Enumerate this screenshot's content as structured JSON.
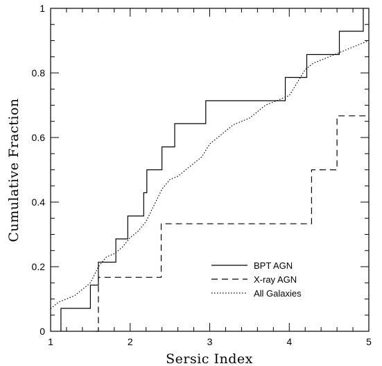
{
  "chart_data": {
    "type": "line",
    "xlabel": "Sersic Index",
    "ylabel": "Cumulative Fraction",
    "xlim": [
      1,
      5
    ],
    "ylim": [
      0,
      1
    ],
    "x_ticks": [
      "1",
      "2",
      "3",
      "4",
      "5"
    ],
    "y_ticks": [
      "0",
      "0.2",
      "0.4",
      "0.6",
      "0.8",
      "1"
    ],
    "grid": false,
    "legend_position": "lower-right",
    "series": [
      {
        "name": "BPT AGN",
        "style": "solid",
        "step": true,
        "x": [
          1.13,
          1.13,
          1.5,
          1.5,
          1.6,
          1.6,
          1.82,
          1.82,
          1.97,
          1.97,
          2.17,
          2.17,
          2.21,
          2.21,
          2.4,
          2.4,
          2.56,
          2.56,
          2.95,
          2.95,
          2.97,
          2.97,
          3.95,
          3.95,
          4.22,
          4.22,
          4.63,
          4.63,
          4.93,
          4.93
        ],
        "y": [
          0,
          0.071,
          0.071,
          0.143,
          0.143,
          0.214,
          0.214,
          0.286,
          0.286,
          0.357,
          0.357,
          0.429,
          0.429,
          0.5,
          0.5,
          0.571,
          0.571,
          0.643,
          0.643,
          0.714,
          0.714,
          0.714,
          0.714,
          0.786,
          0.786,
          0.857,
          0.857,
          0.929,
          0.929,
          1.0
        ]
      },
      {
        "name": "X-ray AGN",
        "style": "dashed",
        "step": true,
        "x": [
          1.57,
          1.57,
          1.6,
          1.6,
          2.39,
          2.39,
          4.28,
          4.28,
          4.6,
          4.6,
          5.0
        ],
        "y": [
          0,
          0.0,
          0.0,
          0.167,
          0.167,
          0.333,
          0.333,
          0.5,
          0.5,
          0.667,
          0.667
        ]
      },
      {
        "name": "All Galaxies",
        "style": "dotted",
        "step": false,
        "x": [
          1.0,
          1.1,
          1.2,
          1.3,
          1.4,
          1.5,
          1.6,
          1.7,
          1.8,
          1.9,
          2.0,
          2.1,
          2.2,
          2.3,
          2.4,
          2.5,
          2.6,
          2.7,
          2.8,
          2.9,
          3.0,
          3.1,
          3.2,
          3.3,
          3.4,
          3.5,
          3.6,
          3.7,
          3.8,
          3.9,
          4.0,
          4.1,
          4.2,
          4.3,
          4.4,
          4.5,
          4.6,
          4.7,
          4.8,
          4.9,
          5.0
        ],
        "y": [
          0.07,
          0.09,
          0.1,
          0.11,
          0.13,
          0.15,
          0.2,
          0.23,
          0.24,
          0.26,
          0.29,
          0.31,
          0.34,
          0.39,
          0.44,
          0.47,
          0.48,
          0.5,
          0.52,
          0.54,
          0.58,
          0.6,
          0.62,
          0.64,
          0.65,
          0.66,
          0.68,
          0.7,
          0.71,
          0.72,
          0.73,
          0.77,
          0.81,
          0.83,
          0.84,
          0.85,
          0.86,
          0.87,
          0.88,
          0.89,
          0.9
        ]
      }
    ]
  }
}
